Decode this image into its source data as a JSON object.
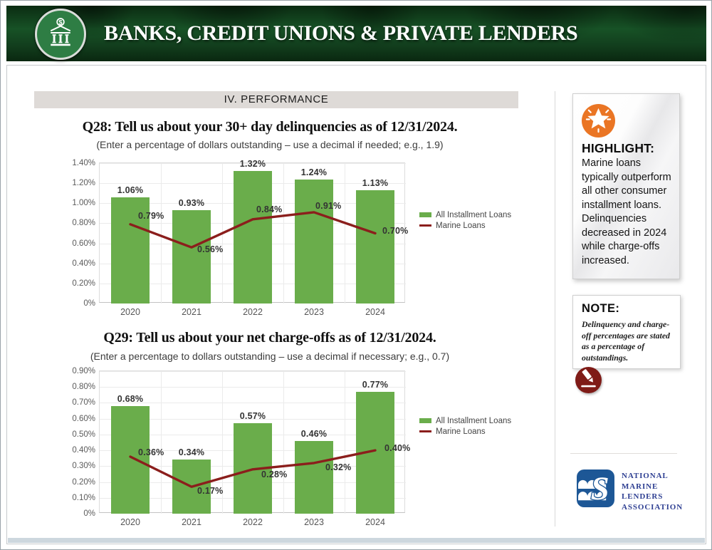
{
  "header": {
    "title": "BANKS, CREDIT UNIONS & PRIVATE LENDERS"
  },
  "section": {
    "label": "IV. PERFORMANCE"
  },
  "chart_data": [
    {
      "type": "bar",
      "title": "Q28: Tell us about your 30+ day delinquencies as of 12/31/2024.",
      "subtitle": "(Enter a percentage of dollars outstanding – use a decimal if needed; e.g., 1.9)",
      "categories": [
        "2020",
        "2021",
        "2022",
        "2023",
        "2024"
      ],
      "series": [
        {
          "name": "All Installment Loans",
          "type": "bar",
          "values": [
            1.06,
            0.93,
            1.32,
            1.24,
            1.13
          ],
          "labels": [
            "1.06%",
            "0.93%",
            "1.32%",
            "1.24%",
            "1.13%"
          ]
        },
        {
          "name": "Marine Loans",
          "type": "line",
          "values": [
            0.79,
            0.56,
            0.84,
            0.91,
            0.7
          ],
          "labels": [
            "0.79%",
            "0.56%",
            "0.84%",
            "0.91%",
            "0.70%"
          ]
        }
      ],
      "ylim": [
        0,
        1.4
      ],
      "ytick_step": 0.2,
      "ytick_labels": [
        "0%",
        "0.20%",
        "0.40%",
        "0.60%",
        "0.80%",
        "1.00%",
        "1.20%",
        "1.40%"
      ],
      "grid": true,
      "legend_position": "right"
    },
    {
      "type": "bar",
      "title": "Q29: Tell us about your net charge-offs as of 12/31/2024.",
      "subtitle": "(Enter a percentage to dollars outstanding – use a decimal if necessary; e.g., 0.7)",
      "categories": [
        "2020",
        "2021",
        "2022",
        "2023",
        "2024"
      ],
      "series": [
        {
          "name": "All Installment Loans",
          "type": "bar",
          "values": [
            0.68,
            0.34,
            0.57,
            0.46,
            0.77
          ],
          "labels": [
            "0.68%",
            "0.34%",
            "0.57%",
            "0.46%",
            "0.77%"
          ]
        },
        {
          "name": "Marine Loans",
          "type": "line",
          "values": [
            0.36,
            0.17,
            0.28,
            0.32,
            0.4
          ],
          "labels": [
            "0.36%",
            "0.17%",
            "0.28%",
            "0.32%",
            "0.40%"
          ]
        }
      ],
      "ylim": [
        0,
        0.9
      ],
      "ytick_step": 0.1,
      "ytick_labels": [
        "0%",
        "0.10%",
        "0.20%",
        "0.30%",
        "0.40%",
        "0.50%",
        "0.60%",
        "0.70%",
        "0.80%",
        "0.90%"
      ],
      "grid": true,
      "legend_position": "right"
    }
  ],
  "sidebar": {
    "highlight": {
      "heading": "HIGHLIGHT:",
      "body": "Marine loans typically outperform all other consumer installment loans. Delinquencies decreased in 2024 while charge-offs increased."
    },
    "note": {
      "heading": "NOTE:",
      "body": "Delinquency and charge-off percentages are stated as a percentage of outstandings."
    },
    "logo": {
      "line1": "NATIONAL",
      "line2": "MARINE",
      "line3": "LENDERS",
      "line4": "ASSOCIATION"
    }
  },
  "colors": {
    "bar_green": "#6aad4b",
    "line_maroon": "#8b1e1c",
    "highlight_orange": "#ea7524",
    "pencil_maroon": "#7f1b17",
    "logo_navy": "#1d5796",
    "logo_text_navy": "#2e3f92",
    "banner_green": "#14461f"
  }
}
